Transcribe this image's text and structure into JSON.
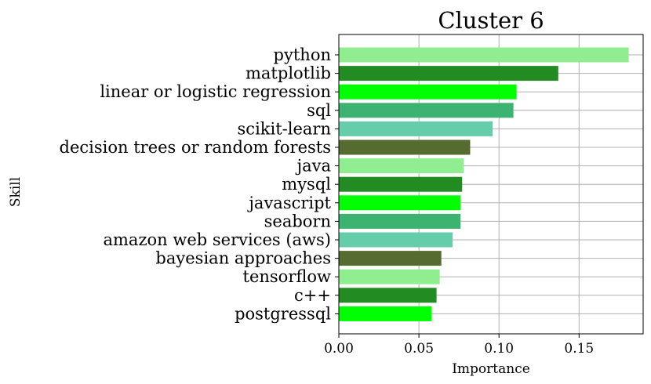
{
  "chart_data": {
    "type": "bar",
    "orientation": "horizontal",
    "title": "Cluster 6",
    "xlabel": "Importance",
    "ylabel": "Skill",
    "xlim": [
      0,
      0.19
    ],
    "xticks": [
      "0.00",
      "0.05",
      "0.10",
      "0.15"
    ],
    "xtick_values": [
      0,
      0.05,
      0.1,
      0.15
    ],
    "grid": true,
    "categories": [
      "python",
      "matplotlib",
      "linear or logistic regression",
      "sql",
      "scikit-learn",
      "decision trees or random forests",
      "java",
      "mysql",
      "javascript",
      "seaborn",
      "amazon web services (aws)",
      "bayesian approaches",
      "tensorflow",
      "c++",
      "postgressql"
    ],
    "values": [
      0.181,
      0.137,
      0.111,
      0.109,
      0.096,
      0.082,
      0.078,
      0.077,
      0.076,
      0.076,
      0.071,
      0.064,
      0.063,
      0.061,
      0.058
    ],
    "colors": [
      "#90ee90",
      "#228b22",
      "#00ff00",
      "#3cb371",
      "#66cdaa",
      "#556b2f",
      "#90ee90",
      "#228b22",
      "#00ff00",
      "#3cb371",
      "#66cdaa",
      "#556b2f",
      "#90ee90",
      "#228b22",
      "#00ff00"
    ]
  }
}
